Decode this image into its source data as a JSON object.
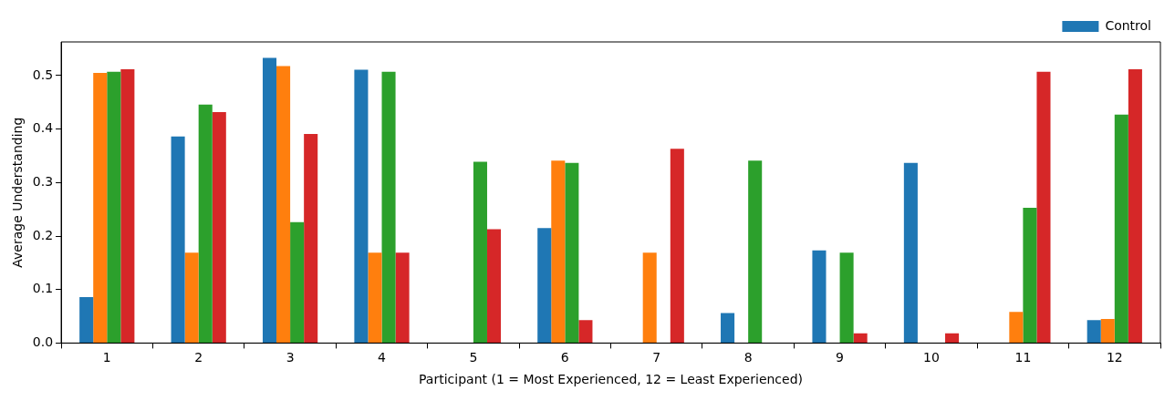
{
  "chart_data": {
    "type": "bar",
    "xlabel": "Participant (1 = Most Experienced, 12 = Least Experienced)",
    "ylabel": "Average Understanding",
    "categories": [
      "1",
      "2",
      "3",
      "4",
      "5",
      "6",
      "7",
      "8",
      "9",
      "10",
      "11",
      "12"
    ],
    "series": [
      {
        "name": "Control",
        "color": "#1f77b4",
        "values": [
          0.086,
          0.386,
          0.533,
          0.511,
          0,
          0.215,
          0,
          0.056,
          0.173,
          0.337,
          0,
          0.043
        ]
      },
      {
        "color": "#ff7f0e",
        "values": [
          0.505,
          0.169,
          0.518,
          0.169,
          0,
          0.341,
          0.169,
          0,
          0,
          0,
          0.058,
          0.045
        ]
      },
      {
        "color": "#2ca02c",
        "values": [
          0.507,
          0.446,
          0.226,
          0.507,
          0.339,
          0.337,
          0,
          0.341,
          0.169,
          0,
          0.253,
          0.427
        ]
      },
      {
        "color": "#d62728",
        "values": [
          0.512,
          0.432,
          0.391,
          0.169,
          0.213,
          0.043,
          0.363,
          0,
          0.018,
          0.018,
          0.507,
          0.512
        ]
      }
    ],
    "ylim": [
      0,
      0.563
    ],
    "yticks": [
      {
        "value": 0,
        "label": "0.0"
      },
      0.1,
      0.2,
      0.3,
      0.4,
      0.5
    ],
    "grid": false,
    "legend": "top right"
  }
}
